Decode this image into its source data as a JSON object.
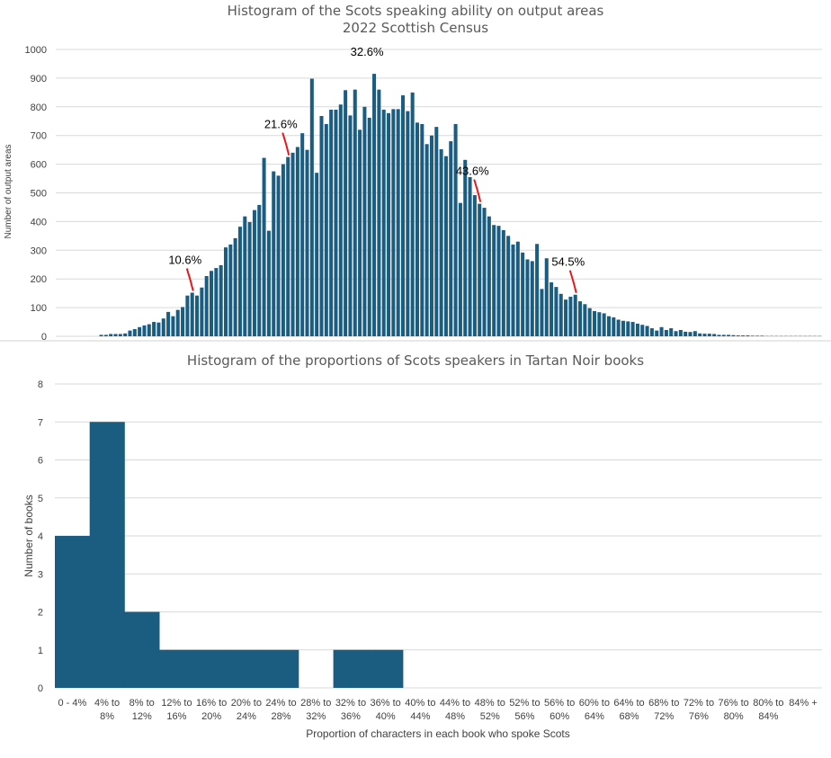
{
  "chart_data": [
    {
      "type": "bar",
      "title": "Histogram of the Scots speaking ability on output areas",
      "subtitle": "2022 Scottish Census",
      "xlabel": "",
      "ylabel": "Number of output areas",
      "ylim": [
        0,
        1000
      ],
      "yticks": [
        "0",
        "100",
        "200",
        "300",
        "400",
        "500",
        "600",
        "700",
        "800",
        "900",
        "1000"
      ],
      "grid": true,
      "values": [
        0,
        0,
        0,
        0,
        0,
        0,
        0,
        0,
        0,
        5,
        5,
        8,
        8,
        8,
        10,
        20,
        25,
        32,
        38,
        42,
        50,
        48,
        62,
        85,
        70,
        92,
        102,
        142,
        152,
        142,
        170,
        210,
        228,
        238,
        248,
        310,
        320,
        342,
        382,
        418,
        398,
        440,
        458,
        622,
        368,
        575,
        560,
        600,
        625,
        640,
        660,
        708,
        650,
        898,
        570,
        768,
        740,
        790,
        790,
        808,
        858,
        770,
        860,
        720,
        800,
        762,
        915,
        860,
        790,
        778,
        792,
        792,
        840,
        785,
        850,
        745,
        740,
        670,
        700,
        730,
        652,
        628,
        680,
        740,
        465,
        615,
        555,
        492,
        462,
        448,
        418,
        388,
        385,
        370,
        350,
        320,
        330,
        292,
        268,
        262,
        322,
        165,
        272,
        188,
        172,
        148,
        128,
        138,
        145,
        122,
        112,
        98,
        88,
        84,
        80,
        70,
        66,
        58,
        54,
        52,
        50,
        44,
        40,
        36,
        28,
        20,
        32,
        22,
        28,
        18,
        22,
        16,
        15,
        18,
        10,
        9,
        9,
        8,
        5,
        5,
        5,
        4,
        3,
        3,
        3,
        2,
        2,
        2,
        1,
        1,
        1,
        1,
        1,
        1,
        1,
        1,
        1,
        1,
        1,
        1
      ],
      "value_notes": "Bars read visually from the chart; leading/trailing tails are near zero.",
      "annotations": [
        {
          "label": "10.6%",
          "bar_index": 28
        },
        {
          "label": "21.6%",
          "bar_index": 48
        },
        {
          "label": "32.6%",
          "bar_index": 66
        },
        {
          "label": "43.6%",
          "bar_index": 88
        },
        {
          "label": "54.5%",
          "bar_index": 108
        }
      ]
    },
    {
      "type": "bar",
      "title": "Histogram of the proportions of Scots speakers in Tartan Noir books",
      "xlabel": "Proportion of characters in each book who spoke Scots",
      "ylabel": "Number of books",
      "ylim": [
        0,
        8
      ],
      "yticks": [
        "0",
        "1",
        "2",
        "3",
        "4",
        "5",
        "6",
        "7",
        "8"
      ],
      "grid": true,
      "categories": [
        [
          "0 - 4%"
        ],
        [
          "4% to",
          "8%"
        ],
        [
          "8% to",
          "12%"
        ],
        [
          "12% to",
          "16%"
        ],
        [
          "16% to",
          "20%"
        ],
        [
          "20% to",
          "24%"
        ],
        [
          "24% to",
          "28%"
        ],
        [
          "28% to",
          "32%"
        ],
        [
          "32% to",
          "36%"
        ],
        [
          "36% to",
          "40%"
        ],
        [
          "40% to",
          "44%"
        ],
        [
          "44% to",
          "48%"
        ],
        [
          "48% to",
          "52%"
        ],
        [
          "52% to",
          "56%"
        ],
        [
          "56% to",
          "60%"
        ],
        [
          "60% to",
          "64%"
        ],
        [
          "64% to",
          "68%"
        ],
        [
          "68% to",
          "72%"
        ],
        [
          "72% to",
          "76%"
        ],
        [
          "76% to",
          "80%"
        ],
        [
          "80% to",
          "84%"
        ],
        [
          "84% +"
        ]
      ],
      "values": [
        4,
        7,
        2,
        1,
        1,
        1,
        1,
        0,
        1,
        1,
        0,
        0,
        0,
        0,
        0,
        0,
        0,
        0,
        0,
        0,
        0,
        0
      ]
    }
  ]
}
